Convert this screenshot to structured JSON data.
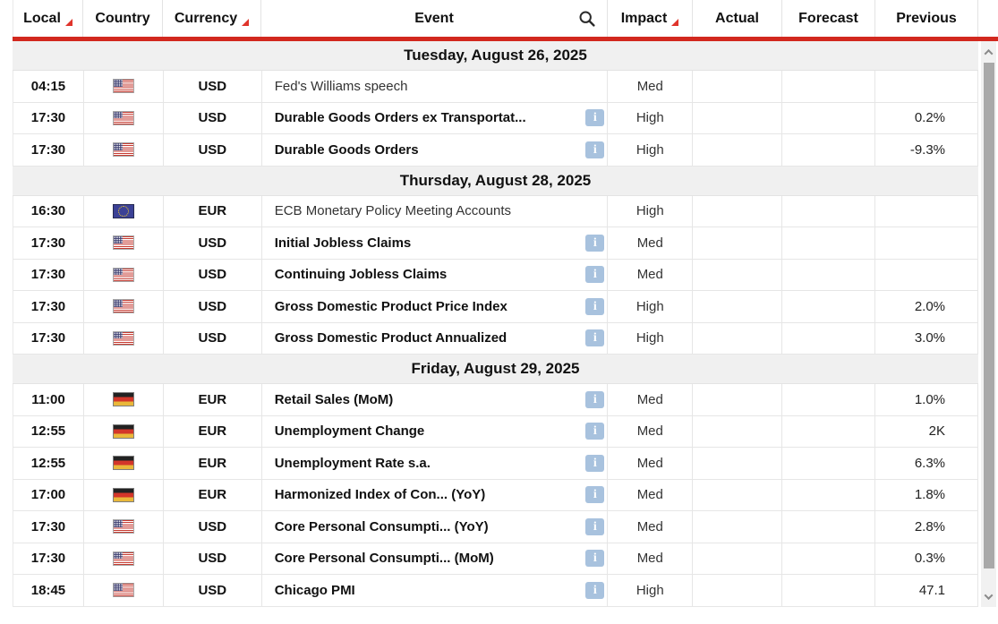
{
  "header": {
    "columns": [
      {
        "id": "local",
        "label": "Local",
        "sort_indicator": true
      },
      {
        "id": "country",
        "label": "Country",
        "sort_indicator": false
      },
      {
        "id": "currency",
        "label": "Currency",
        "sort_indicator": true
      },
      {
        "id": "event",
        "label": "Event",
        "sort_indicator": false,
        "has_search_icon": true
      },
      {
        "id": "impact",
        "label": "Impact",
        "sort_indicator": true
      },
      {
        "id": "actual",
        "label": "Actual",
        "sort_indicator": false
      },
      {
        "id": "forecast",
        "label": "Forecast",
        "sort_indicator": false
      },
      {
        "id": "previous",
        "label": "Previous",
        "sort_indicator": false
      }
    ]
  },
  "icons": {
    "search": "search-icon",
    "info_glyph": "i"
  },
  "flags": {
    "us": "United States",
    "eu": "European Union",
    "de": "Germany"
  },
  "colors": {
    "header_underline": "#d2281e",
    "sort_triangle": "#e0342b",
    "date_row_bg": "#f0f0f0",
    "grid_border": "#e6e6e6",
    "info_icon_bg": "#a8c2de",
    "scrollbar_thumb": "#a9a9a9",
    "scrollbar_track": "#f1f1f1"
  },
  "sections": [
    {
      "date": "Tuesday, August 26, 2025",
      "rows": [
        {
          "time": "04:15",
          "country": "us",
          "currency": "USD",
          "event": "Fed's Williams speech",
          "bold": false,
          "info": false,
          "impact": "Med",
          "actual": "",
          "forecast": "",
          "previous": ""
        },
        {
          "time": "17:30",
          "country": "us",
          "currency": "USD",
          "event": "Durable Goods Orders ex Transportat...",
          "bold": true,
          "info": true,
          "impact": "High",
          "actual": "",
          "forecast": "",
          "previous": "0.2%"
        },
        {
          "time": "17:30",
          "country": "us",
          "currency": "USD",
          "event": "Durable Goods Orders",
          "bold": true,
          "info": true,
          "impact": "High",
          "actual": "",
          "forecast": "",
          "previous": "-9.3%"
        }
      ]
    },
    {
      "date": "Thursday, August 28, 2025",
      "rows": [
        {
          "time": "16:30",
          "country": "eu",
          "currency": "EUR",
          "event": "ECB Monetary Policy Meeting Accounts",
          "bold": false,
          "info": false,
          "impact": "High",
          "actual": "",
          "forecast": "",
          "previous": ""
        },
        {
          "time": "17:30",
          "country": "us",
          "currency": "USD",
          "event": "Initial Jobless Claims",
          "bold": true,
          "info": true,
          "impact": "Med",
          "actual": "",
          "forecast": "",
          "previous": ""
        },
        {
          "time": "17:30",
          "country": "us",
          "currency": "USD",
          "event": "Continuing Jobless Claims",
          "bold": true,
          "info": true,
          "impact": "Med",
          "actual": "",
          "forecast": "",
          "previous": ""
        },
        {
          "time": "17:30",
          "country": "us",
          "currency": "USD",
          "event": "Gross Domestic Product Price Index",
          "bold": true,
          "info": true,
          "impact": "High",
          "actual": "",
          "forecast": "",
          "previous": "2.0%"
        },
        {
          "time": "17:30",
          "country": "us",
          "currency": "USD",
          "event": "Gross Domestic Product Annualized",
          "bold": true,
          "info": true,
          "impact": "High",
          "actual": "",
          "forecast": "",
          "previous": "3.0%"
        }
      ]
    },
    {
      "date": "Friday, August 29, 2025",
      "rows": [
        {
          "time": "11:00",
          "country": "de",
          "currency": "EUR",
          "event": "Retail Sales (MoM)",
          "bold": true,
          "info": true,
          "impact": "Med",
          "actual": "",
          "forecast": "",
          "previous": "1.0%"
        },
        {
          "time": "12:55",
          "country": "de",
          "currency": "EUR",
          "event": "Unemployment Change",
          "bold": true,
          "info": true,
          "impact": "Med",
          "actual": "",
          "forecast": "",
          "previous": "2K"
        },
        {
          "time": "12:55",
          "country": "de",
          "currency": "EUR",
          "event": "Unemployment Rate s.a.",
          "bold": true,
          "info": true,
          "impact": "Med",
          "actual": "",
          "forecast": "",
          "previous": "6.3%"
        },
        {
          "time": "17:00",
          "country": "de",
          "currency": "EUR",
          "event": "Harmonized Index of Con...  (YoY)",
          "bold": true,
          "info": true,
          "impact": "Med",
          "actual": "",
          "forecast": "",
          "previous": "1.8%"
        },
        {
          "time": "17:30",
          "country": "us",
          "currency": "USD",
          "event": "Core Personal Consumpti...  (YoY)",
          "bold": true,
          "info": true,
          "impact": "Med",
          "actual": "",
          "forecast": "",
          "previous": "2.8%"
        },
        {
          "time": "17:30",
          "country": "us",
          "currency": "USD",
          "event": "Core Personal Consumpti...  (MoM)",
          "bold": true,
          "info": true,
          "impact": "Med",
          "actual": "",
          "forecast": "",
          "previous": "0.3%"
        },
        {
          "time": "18:45",
          "country": "us",
          "currency": "USD",
          "event": "Chicago PMI",
          "bold": true,
          "info": true,
          "impact": "High",
          "actual": "",
          "forecast": "",
          "previous": "47.1"
        }
      ]
    }
  ]
}
